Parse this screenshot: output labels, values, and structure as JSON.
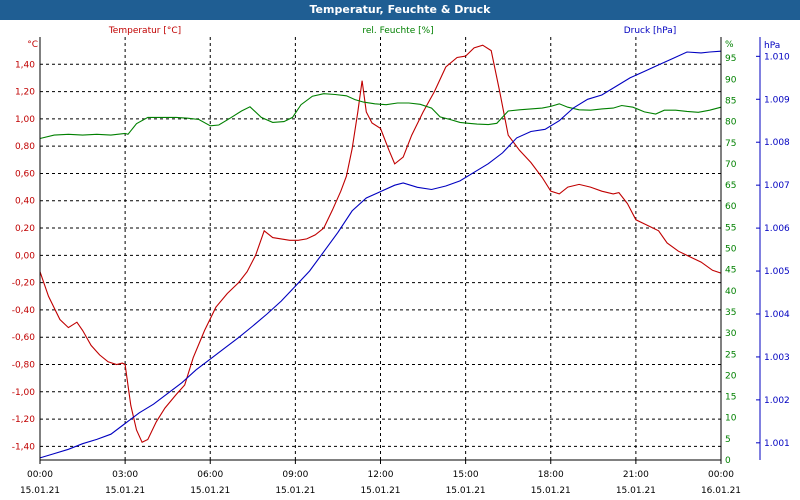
{
  "window": {
    "title": "Temperatur, Feuchte & Druck"
  },
  "chart_data": {
    "type": "line",
    "title": "Temperatur, Feuchte & Druck",
    "grid": true,
    "x": {
      "range": [
        "00:00 15.01.21",
        "00:00 16.01.21"
      ],
      "ticks": [
        {
          "time": "00:00",
          "date": "15.01.21"
        },
        {
          "time": "03:00",
          "date": "15.01.21"
        },
        {
          "time": "06:00",
          "date": "15.01.21"
        },
        {
          "time": "09:00",
          "date": "15.01.21"
        },
        {
          "time": "12:00",
          "date": "15.01.21"
        },
        {
          "time": "15:00",
          "date": "15.01.21"
        },
        {
          "time": "18:00",
          "date": "15.01.21"
        },
        {
          "time": "21:00",
          "date": "15.01.21"
        },
        {
          "time": "00:00",
          "date": "16.01.21"
        }
      ]
    },
    "axes": {
      "temperature": {
        "unit": "°C",
        "range": [
          -1.5,
          1.6
        ],
        "ticks": [
          "1,40",
          "1,20",
          "1,00",
          "0,80",
          "0,60",
          "0,40",
          "0,20",
          "0,00",
          "-0,20",
          "-0,40",
          "-0,60",
          "-0,80",
          "-1,00",
          "-1,20",
          "-1,40"
        ]
      },
      "humidity": {
        "unit": "%",
        "range": [
          0,
          100
        ],
        "ticks": [
          "95",
          "90",
          "85",
          "80",
          "75",
          "70",
          "65",
          "60",
          "55",
          "50",
          "45",
          "40",
          "35",
          "30",
          "25",
          "20",
          "15",
          "10",
          "5",
          "0"
        ]
      },
      "pressure": {
        "unit": "hPa",
        "range": [
          1000.6,
          1010.45
        ],
        "ticks": [
          "1.010",
          "1.009",
          "1.008",
          "1.007",
          "1.006",
          "1.005",
          "1.004",
          "1.003",
          "1.002",
          "1.001"
        ]
      }
    },
    "series": [
      {
        "name": "Temperatur [°C]",
        "axis": "temperature",
        "color": "#c00000",
        "points": [
          [
            0,
            -0.12
          ],
          [
            0.3,
            -0.3
          ],
          [
            0.7,
            -0.47
          ],
          [
            1.0,
            -0.53
          ],
          [
            1.3,
            -0.49
          ],
          [
            1.5,
            -0.55
          ],
          [
            1.8,
            -0.66
          ],
          [
            2.1,
            -0.73
          ],
          [
            2.4,
            -0.78
          ],
          [
            2.7,
            -0.8
          ],
          [
            2.9,
            -0.79
          ],
          [
            3.0,
            -0.8
          ],
          [
            3.2,
            -1.1
          ],
          [
            3.4,
            -1.28
          ],
          [
            3.6,
            -1.37
          ],
          [
            3.8,
            -1.35
          ],
          [
            4.1,
            -1.22
          ],
          [
            4.4,
            -1.12
          ],
          [
            4.8,
            -1.02
          ],
          [
            5.1,
            -0.95
          ],
          [
            5.4,
            -0.75
          ],
          [
            5.8,
            -0.55
          ],
          [
            6.2,
            -0.38
          ],
          [
            6.6,
            -0.28
          ],
          [
            7.0,
            -0.2
          ],
          [
            7.3,
            -0.12
          ],
          [
            7.6,
            0.0
          ],
          [
            7.9,
            0.18
          ],
          [
            8.2,
            0.13
          ],
          [
            8.5,
            0.12
          ],
          [
            8.8,
            0.11
          ],
          [
            9.1,
            0.11
          ],
          [
            9.4,
            0.12
          ],
          [
            9.7,
            0.15
          ],
          [
            10.0,
            0.2
          ],
          [
            10.3,
            0.33
          ],
          [
            10.6,
            0.47
          ],
          [
            10.8,
            0.58
          ],
          [
            11.0,
            0.78
          ],
          [
            11.2,
            1.05
          ],
          [
            11.35,
            1.28
          ],
          [
            11.5,
            1.05
          ],
          [
            11.7,
            0.97
          ],
          [
            12.0,
            0.93
          ],
          [
            12.3,
            0.77
          ],
          [
            12.5,
            0.67
          ],
          [
            12.8,
            0.72
          ],
          [
            13.1,
            0.88
          ],
          [
            13.5,
            1.05
          ],
          [
            13.9,
            1.2
          ],
          [
            14.3,
            1.38
          ],
          [
            14.7,
            1.45
          ],
          [
            15.0,
            1.46
          ],
          [
            15.3,
            1.52
          ],
          [
            15.6,
            1.54
          ],
          [
            15.9,
            1.5
          ],
          [
            16.2,
            1.2
          ],
          [
            16.5,
            0.88
          ],
          [
            16.9,
            0.77
          ],
          [
            17.3,
            0.68
          ],
          [
            17.7,
            0.57
          ],
          [
            18.0,
            0.47
          ],
          [
            18.3,
            0.45
          ],
          [
            18.6,
            0.5
          ],
          [
            19.0,
            0.52
          ],
          [
            19.4,
            0.5
          ],
          [
            19.8,
            0.47
          ],
          [
            20.2,
            0.45
          ],
          [
            20.4,
            0.46
          ],
          [
            20.7,
            0.38
          ],
          [
            21.0,
            0.26
          ],
          [
            21.4,
            0.22
          ],
          [
            21.8,
            0.18
          ],
          [
            22.1,
            0.09
          ],
          [
            22.5,
            0.03
          ],
          [
            22.9,
            -0.01
          ],
          [
            23.3,
            -0.05
          ],
          [
            23.7,
            -0.11
          ],
          [
            24.0,
            -0.13
          ]
        ]
      },
      {
        "name": "rel. Feuchte [%]",
        "axis": "humidity",
        "color": "#008000",
        "points": [
          [
            0,
            76
          ],
          [
            0.5,
            76.8
          ],
          [
            1,
            77
          ],
          [
            1.5,
            76.8
          ],
          [
            2,
            77
          ],
          [
            2.5,
            76.8
          ],
          [
            3,
            77.2
          ],
          [
            3.1,
            77
          ],
          [
            3.4,
            79.5
          ],
          [
            3.8,
            81
          ],
          [
            4.3,
            81
          ],
          [
            4.8,
            81
          ],
          [
            5.2,
            80.8
          ],
          [
            5.6,
            80.5
          ],
          [
            6.0,
            79
          ],
          [
            6.3,
            79.2
          ],
          [
            6.7,
            80.8
          ],
          [
            7.1,
            82.5
          ],
          [
            7.4,
            83.5
          ],
          [
            7.8,
            81
          ],
          [
            8.2,
            79.8
          ],
          [
            8.6,
            80
          ],
          [
            8.9,
            81
          ],
          [
            9.2,
            84
          ],
          [
            9.6,
            86
          ],
          [
            10.0,
            86.6
          ],
          [
            10.4,
            86.4
          ],
          [
            10.8,
            86.1
          ],
          [
            11.1,
            85.2
          ],
          [
            11.4,
            84.6
          ],
          [
            11.8,
            84.2
          ],
          [
            12.2,
            84
          ],
          [
            12.6,
            84.4
          ],
          [
            13.0,
            84.4
          ],
          [
            13.4,
            84.1
          ],
          [
            13.8,
            83.2
          ],
          [
            14.1,
            81.1
          ],
          [
            14.5,
            80.4
          ],
          [
            14.8,
            79.8
          ],
          [
            15.1,
            79.6
          ],
          [
            15.4,
            79.4
          ],
          [
            15.8,
            79.3
          ],
          [
            16.1,
            79.6
          ],
          [
            16.5,
            82.5
          ],
          [
            16.9,
            82.8
          ],
          [
            17.3,
            83
          ],
          [
            17.7,
            83.2
          ],
          [
            18.0,
            83.6
          ],
          [
            18.3,
            84.2
          ],
          [
            18.6,
            83.4
          ],
          [
            19.0,
            82.8
          ],
          [
            19.4,
            82.7
          ],
          [
            19.8,
            83
          ],
          [
            20.2,
            83.2
          ],
          [
            20.5,
            83.8
          ],
          [
            20.9,
            83.4
          ],
          [
            21.3,
            82.3
          ],
          [
            21.7,
            81.8
          ],
          [
            22.0,
            82.7
          ],
          [
            22.4,
            82.7
          ],
          [
            22.8,
            82.4
          ],
          [
            23.2,
            82.2
          ],
          [
            23.6,
            82.7
          ],
          [
            24.0,
            83.4
          ]
        ]
      },
      {
        "name": "Druck [hPa]",
        "axis": "pressure",
        "color": "#0000c0",
        "points": [
          [
            0,
            1000.65
          ],
          [
            0.5,
            1000.75
          ],
          [
            1,
            1000.85
          ],
          [
            1.5,
            1000.98
          ],
          [
            2,
            1001.08
          ],
          [
            2.5,
            1001.2
          ],
          [
            3,
            1001.45
          ],
          [
            3.5,
            1001.7
          ],
          [
            4,
            1001.9
          ],
          [
            4.5,
            1002.15
          ],
          [
            5,
            1002.4
          ],
          [
            5.5,
            1002.7
          ],
          [
            6,
            1002.95
          ],
          [
            6.5,
            1003.2
          ],
          [
            7,
            1003.45
          ],
          [
            7.5,
            1003.72
          ],
          [
            8,
            1004.0
          ],
          [
            8.5,
            1004.3
          ],
          [
            9,
            1004.65
          ],
          [
            9.5,
            1005.0
          ],
          [
            10,
            1005.45
          ],
          [
            10.5,
            1005.9
          ],
          [
            11,
            1006.4
          ],
          [
            11.5,
            1006.7
          ],
          [
            12,
            1006.85
          ],
          [
            12.5,
            1007.0
          ],
          [
            12.8,
            1007.05
          ],
          [
            13.3,
            1006.95
          ],
          [
            13.8,
            1006.9
          ],
          [
            14.3,
            1006.98
          ],
          [
            14.8,
            1007.1
          ],
          [
            15.3,
            1007.3
          ],
          [
            15.8,
            1007.5
          ],
          [
            16.3,
            1007.75
          ],
          [
            16.8,
            1008.1
          ],
          [
            17.3,
            1008.25
          ],
          [
            17.8,
            1008.3
          ],
          [
            18.3,
            1008.5
          ],
          [
            18.8,
            1008.8
          ],
          [
            19.3,
            1009.0
          ],
          [
            19.8,
            1009.1
          ],
          [
            20.3,
            1009.3
          ],
          [
            20.8,
            1009.5
          ],
          [
            21.3,
            1009.65
          ],
          [
            21.8,
            1009.8
          ],
          [
            22.3,
            1009.95
          ],
          [
            22.8,
            1010.1
          ],
          [
            23.3,
            1010.08
          ],
          [
            23.6,
            1010.1
          ],
          [
            24.0,
            1010.12
          ]
        ]
      }
    ]
  }
}
